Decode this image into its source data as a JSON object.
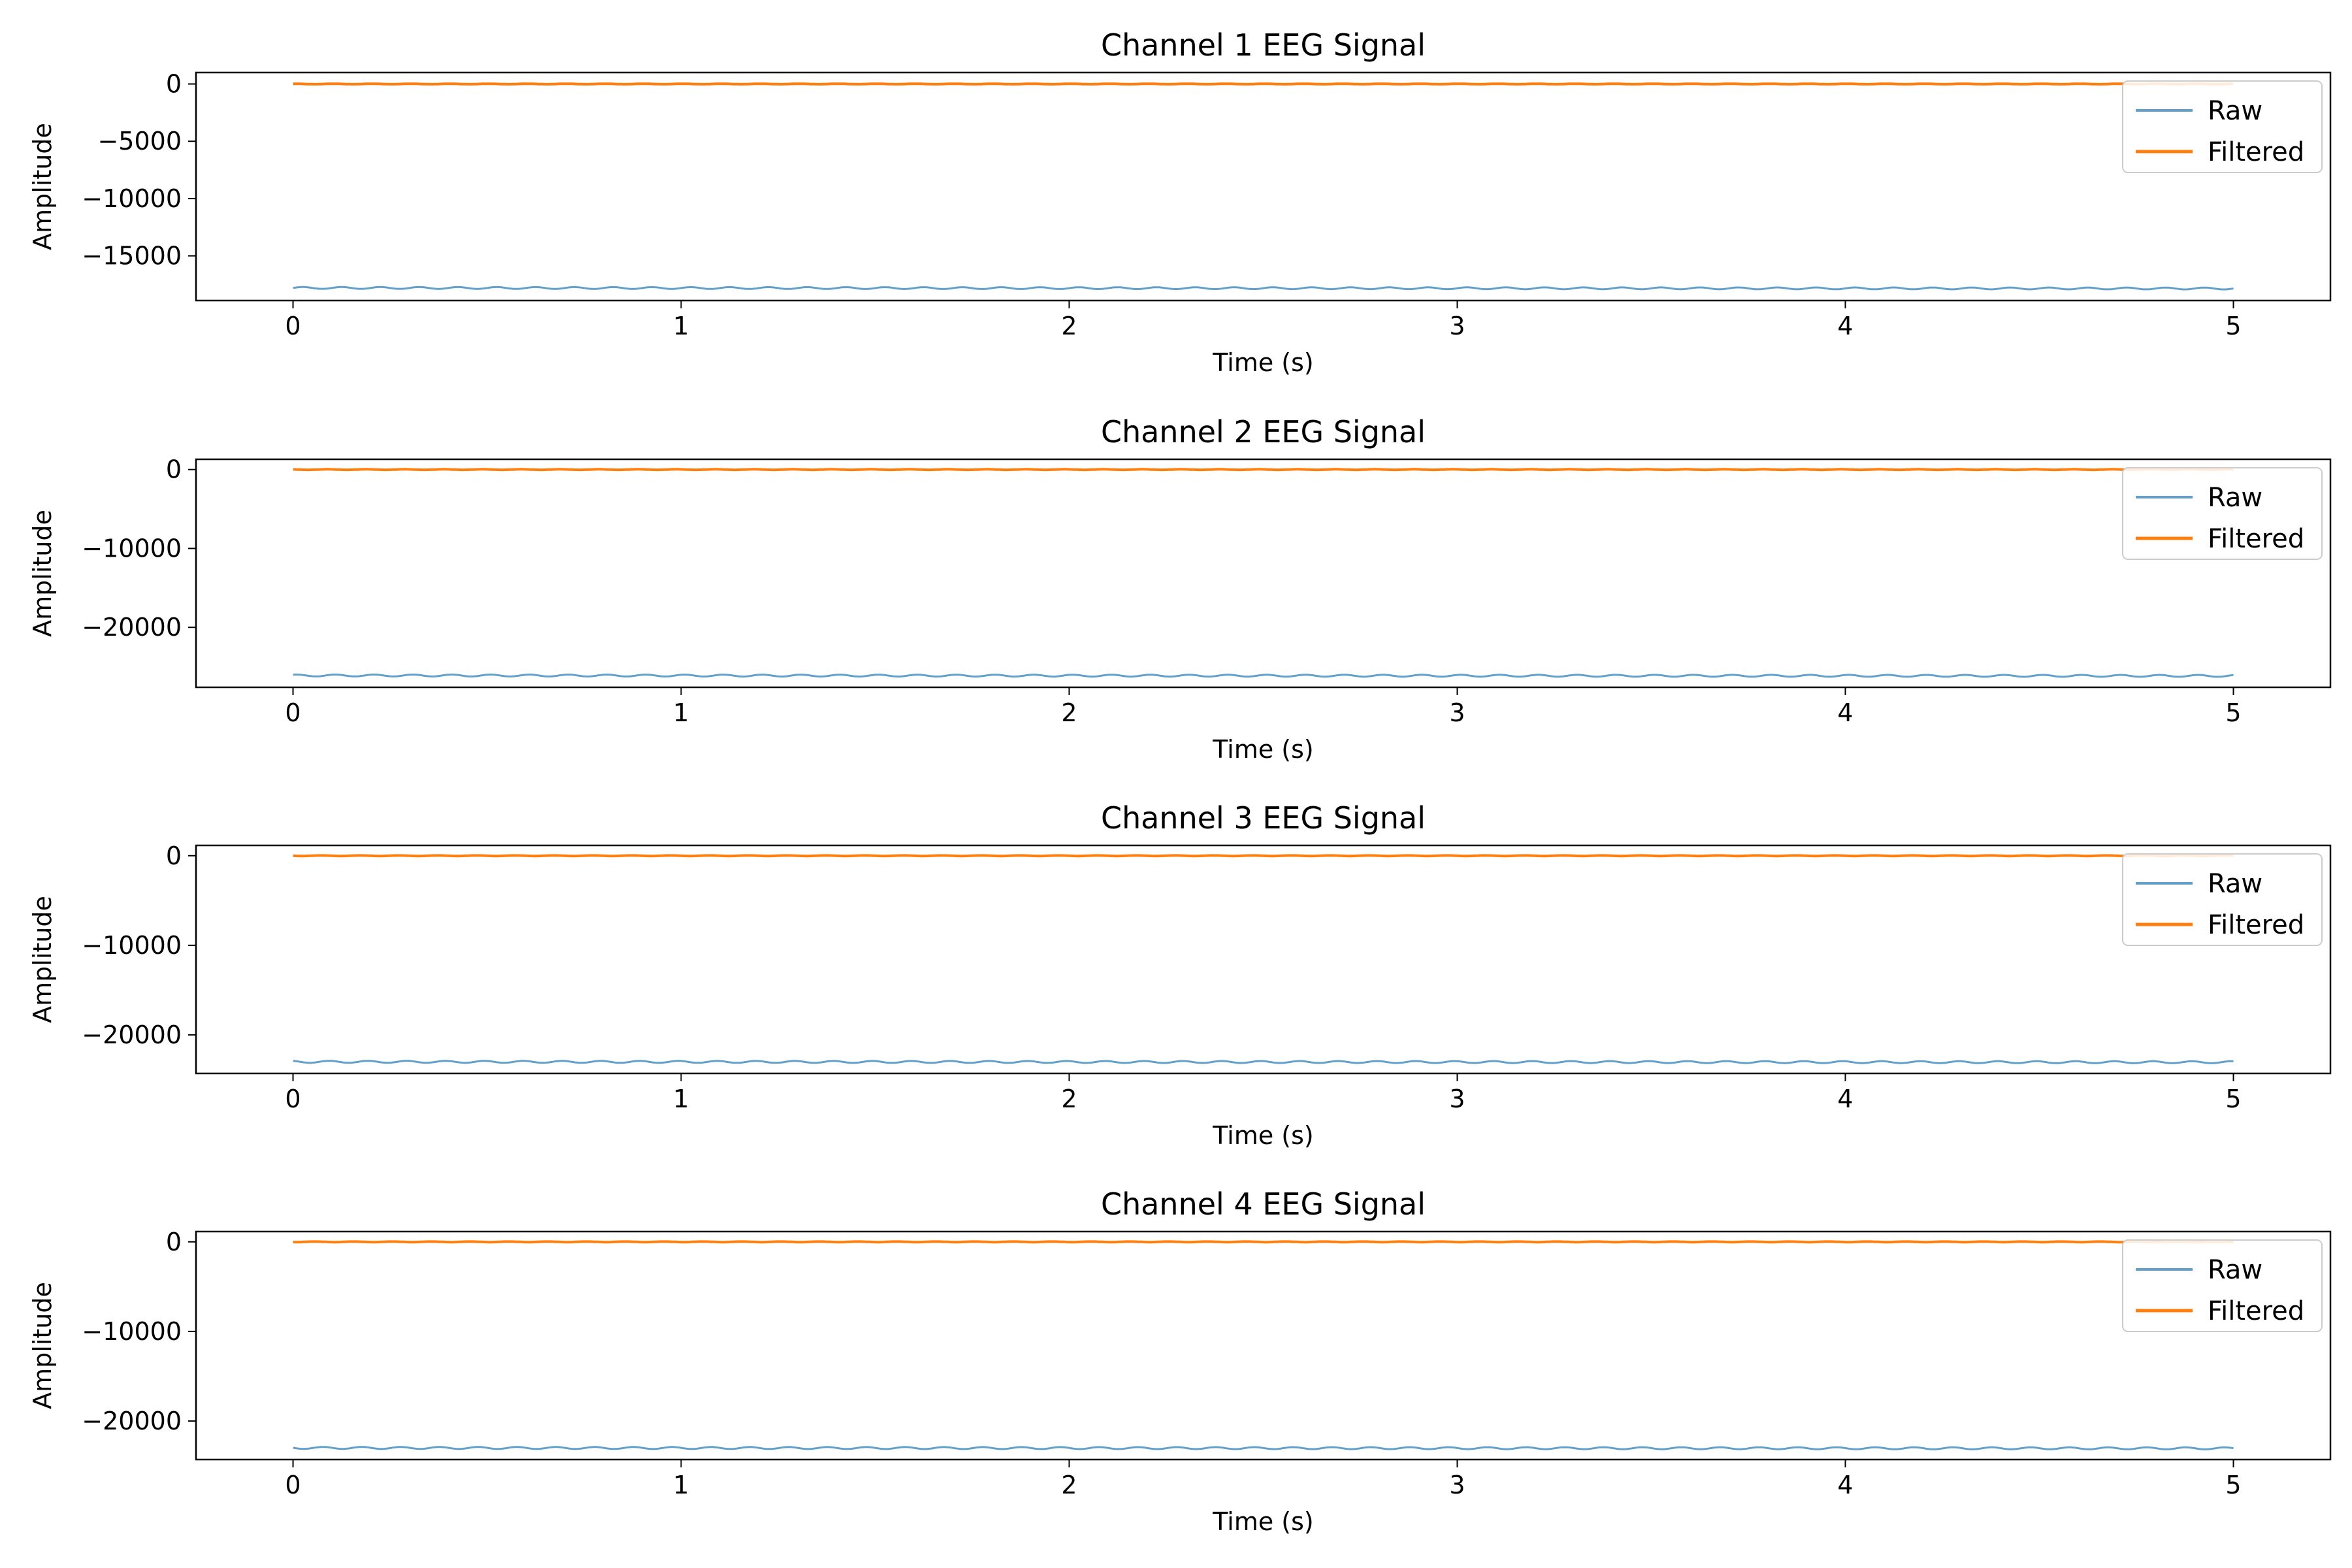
{
  "colors": {
    "raw": "#1f77b4",
    "filtered": "#ff7f0e"
  },
  "chart_data": [
    {
      "type": "line",
      "title": "Channel 1 EEG Signal",
      "xlabel": "Time (s)",
      "ylabel": "Amplitude",
      "xlim": [
        -0.25,
        5.25
      ],
      "ylim": [
        -18900,
        1000
      ],
      "xticks": [
        0,
        1,
        2,
        3,
        4,
        5
      ],
      "yticks": [
        0,
        -5000,
        -10000,
        -15000
      ],
      "ytick_labels": [
        "0",
        "−5000",
        "−10000",
        "−15000"
      ],
      "grid": false,
      "legend_position": "top-right",
      "series": [
        {
          "name": "Raw",
          "x": [
            0,
            5
          ],
          "y": [
            -17800,
            -17850
          ],
          "noise_amplitude": 80
        },
        {
          "name": "Filtered",
          "x": [
            0,
            5
          ],
          "y": [
            0,
            0
          ],
          "noise_amplitude": 20
        }
      ]
    },
    {
      "type": "line",
      "title": "Channel 2 EEG Signal",
      "xlabel": "Time (s)",
      "ylabel": "Amplitude",
      "xlim": [
        -0.25,
        5.25
      ],
      "ylim": [
        -27600,
        1300
      ],
      "xticks": [
        0,
        1,
        2,
        3,
        4,
        5
      ],
      "yticks": [
        0,
        -10000,
        -20000
      ],
      "ytick_labels": [
        "0",
        "−10000",
        "−20000"
      ],
      "grid": false,
      "legend_position": "top-right",
      "series": [
        {
          "name": "Raw",
          "x": [
            0,
            5
          ],
          "y": [
            -26100,
            -26150
          ],
          "noise_amplitude": 120
        },
        {
          "name": "Filtered",
          "x": [
            0,
            5
          ],
          "y": [
            0,
            0
          ],
          "noise_amplitude": 30
        }
      ]
    },
    {
      "type": "line",
      "title": "Channel 3 EEG Signal",
      "xlabel": "Time (s)",
      "ylabel": "Amplitude",
      "xlim": [
        -0.25,
        5.25
      ],
      "ylim": [
        -24300,
        1150
      ],
      "xticks": [
        0,
        1,
        2,
        3,
        4,
        5
      ],
      "yticks": [
        0,
        -10000,
        -20000
      ],
      "ytick_labels": [
        "0",
        "−10000",
        "−20000"
      ],
      "grid": false,
      "legend_position": "top-right",
      "series": [
        {
          "name": "Raw",
          "x": [
            0,
            5
          ],
          "y": [
            -23000,
            -23050
          ],
          "noise_amplitude": 110
        },
        {
          "name": "Filtered",
          "x": [
            0,
            5
          ],
          "y": [
            0,
            0
          ],
          "noise_amplitude": 30
        }
      ]
    },
    {
      "type": "line",
      "title": "Channel 4 EEG Signal",
      "xlabel": "Time (s)",
      "ylabel": "Amplitude",
      "xlim": [
        -0.25,
        5.25
      ],
      "ylim": [
        -24300,
        1150
      ],
      "xticks": [
        0,
        1,
        2,
        3,
        4,
        5
      ],
      "yticks": [
        0,
        -10000,
        -20000
      ],
      "ytick_labels": [
        "0",
        "−10000",
        "−20000"
      ],
      "grid": false,
      "legend_position": "top-right",
      "series": [
        {
          "name": "Raw",
          "x": [
            0,
            5
          ],
          "y": [
            -23000,
            -23050
          ],
          "noise_amplitude": 110
        },
        {
          "name": "Filtered",
          "x": [
            0,
            5
          ],
          "y": [
            0,
            0
          ],
          "noise_amplitude": 30
        }
      ]
    }
  ]
}
